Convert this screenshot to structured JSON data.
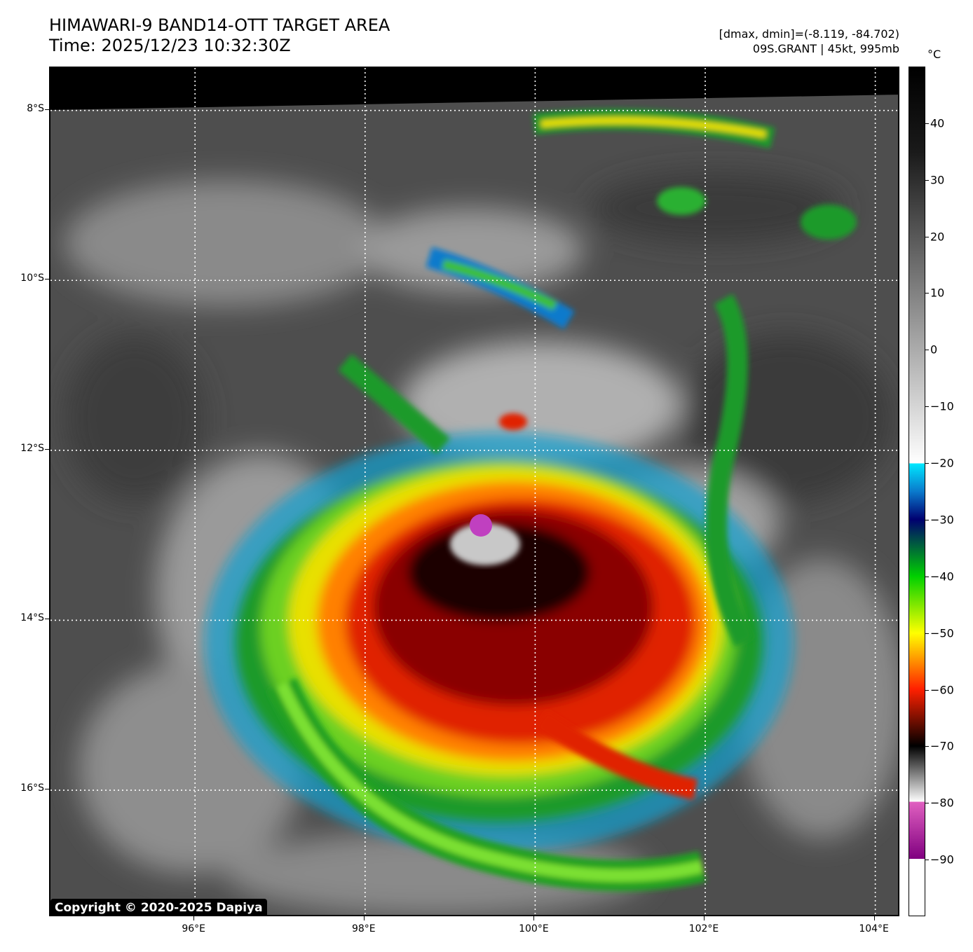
{
  "header": {
    "title_line1": "HIMAWARI-9 BAND14-OTT TARGET AREA",
    "title_line2": "Time: 2025/12/23 10:32:30Z",
    "dminmax": "[dmax, dmin]=(-8.119, -84.702)",
    "storm": "09S.GRANT | 45kt, 995mb"
  },
  "map": {
    "lat_labels": [
      {
        "text": "8°S",
        "lat": -8
      },
      {
        "text": "10°S",
        "lat": -10
      },
      {
        "text": "12°S",
        "lat": -12
      },
      {
        "text": "14°S",
        "lat": -14
      },
      {
        "text": "16°S",
        "lat": -16
      }
    ],
    "lon_labels": [
      {
        "text": "96°E",
        "lon": 96
      },
      {
        "text": "98°E",
        "lon": 98
      },
      {
        "text": "100°E",
        "lon": 100
      },
      {
        "text": "102°E",
        "lon": 102
      },
      {
        "text": "104°E",
        "lon": 104
      }
    ],
    "lat_range": [
      -17.5,
      -7.5
    ],
    "lon_range": [
      94.3,
      104.3
    ],
    "gridlines": "dotted white",
    "storm_center": {
      "lat": -12.8,
      "lon": 99.3
    }
  },
  "colorbar": {
    "unit": "°C",
    "range": [
      -100,
      50
    ],
    "labels": [
      {
        "text": "40",
        "value": 40
      },
      {
        "text": "30",
        "value": 30
      },
      {
        "text": "20",
        "value": 20
      },
      {
        "text": "10",
        "value": 10
      },
      {
        "text": "0",
        "value": 0
      },
      {
        "text": "−10",
        "value": -10
      },
      {
        "text": "−20",
        "value": -20
      },
      {
        "text": "−30",
        "value": -30
      },
      {
        "text": "−40",
        "value": -40
      },
      {
        "text": "−50",
        "value": -50
      },
      {
        "text": "−60",
        "value": -60
      },
      {
        "text": "−70",
        "value": -70
      },
      {
        "text": "−80",
        "value": -80
      },
      {
        "text": "−90",
        "value": -90
      }
    ]
  },
  "copyright": "Copyright © 2020-2025 Dapiya"
}
